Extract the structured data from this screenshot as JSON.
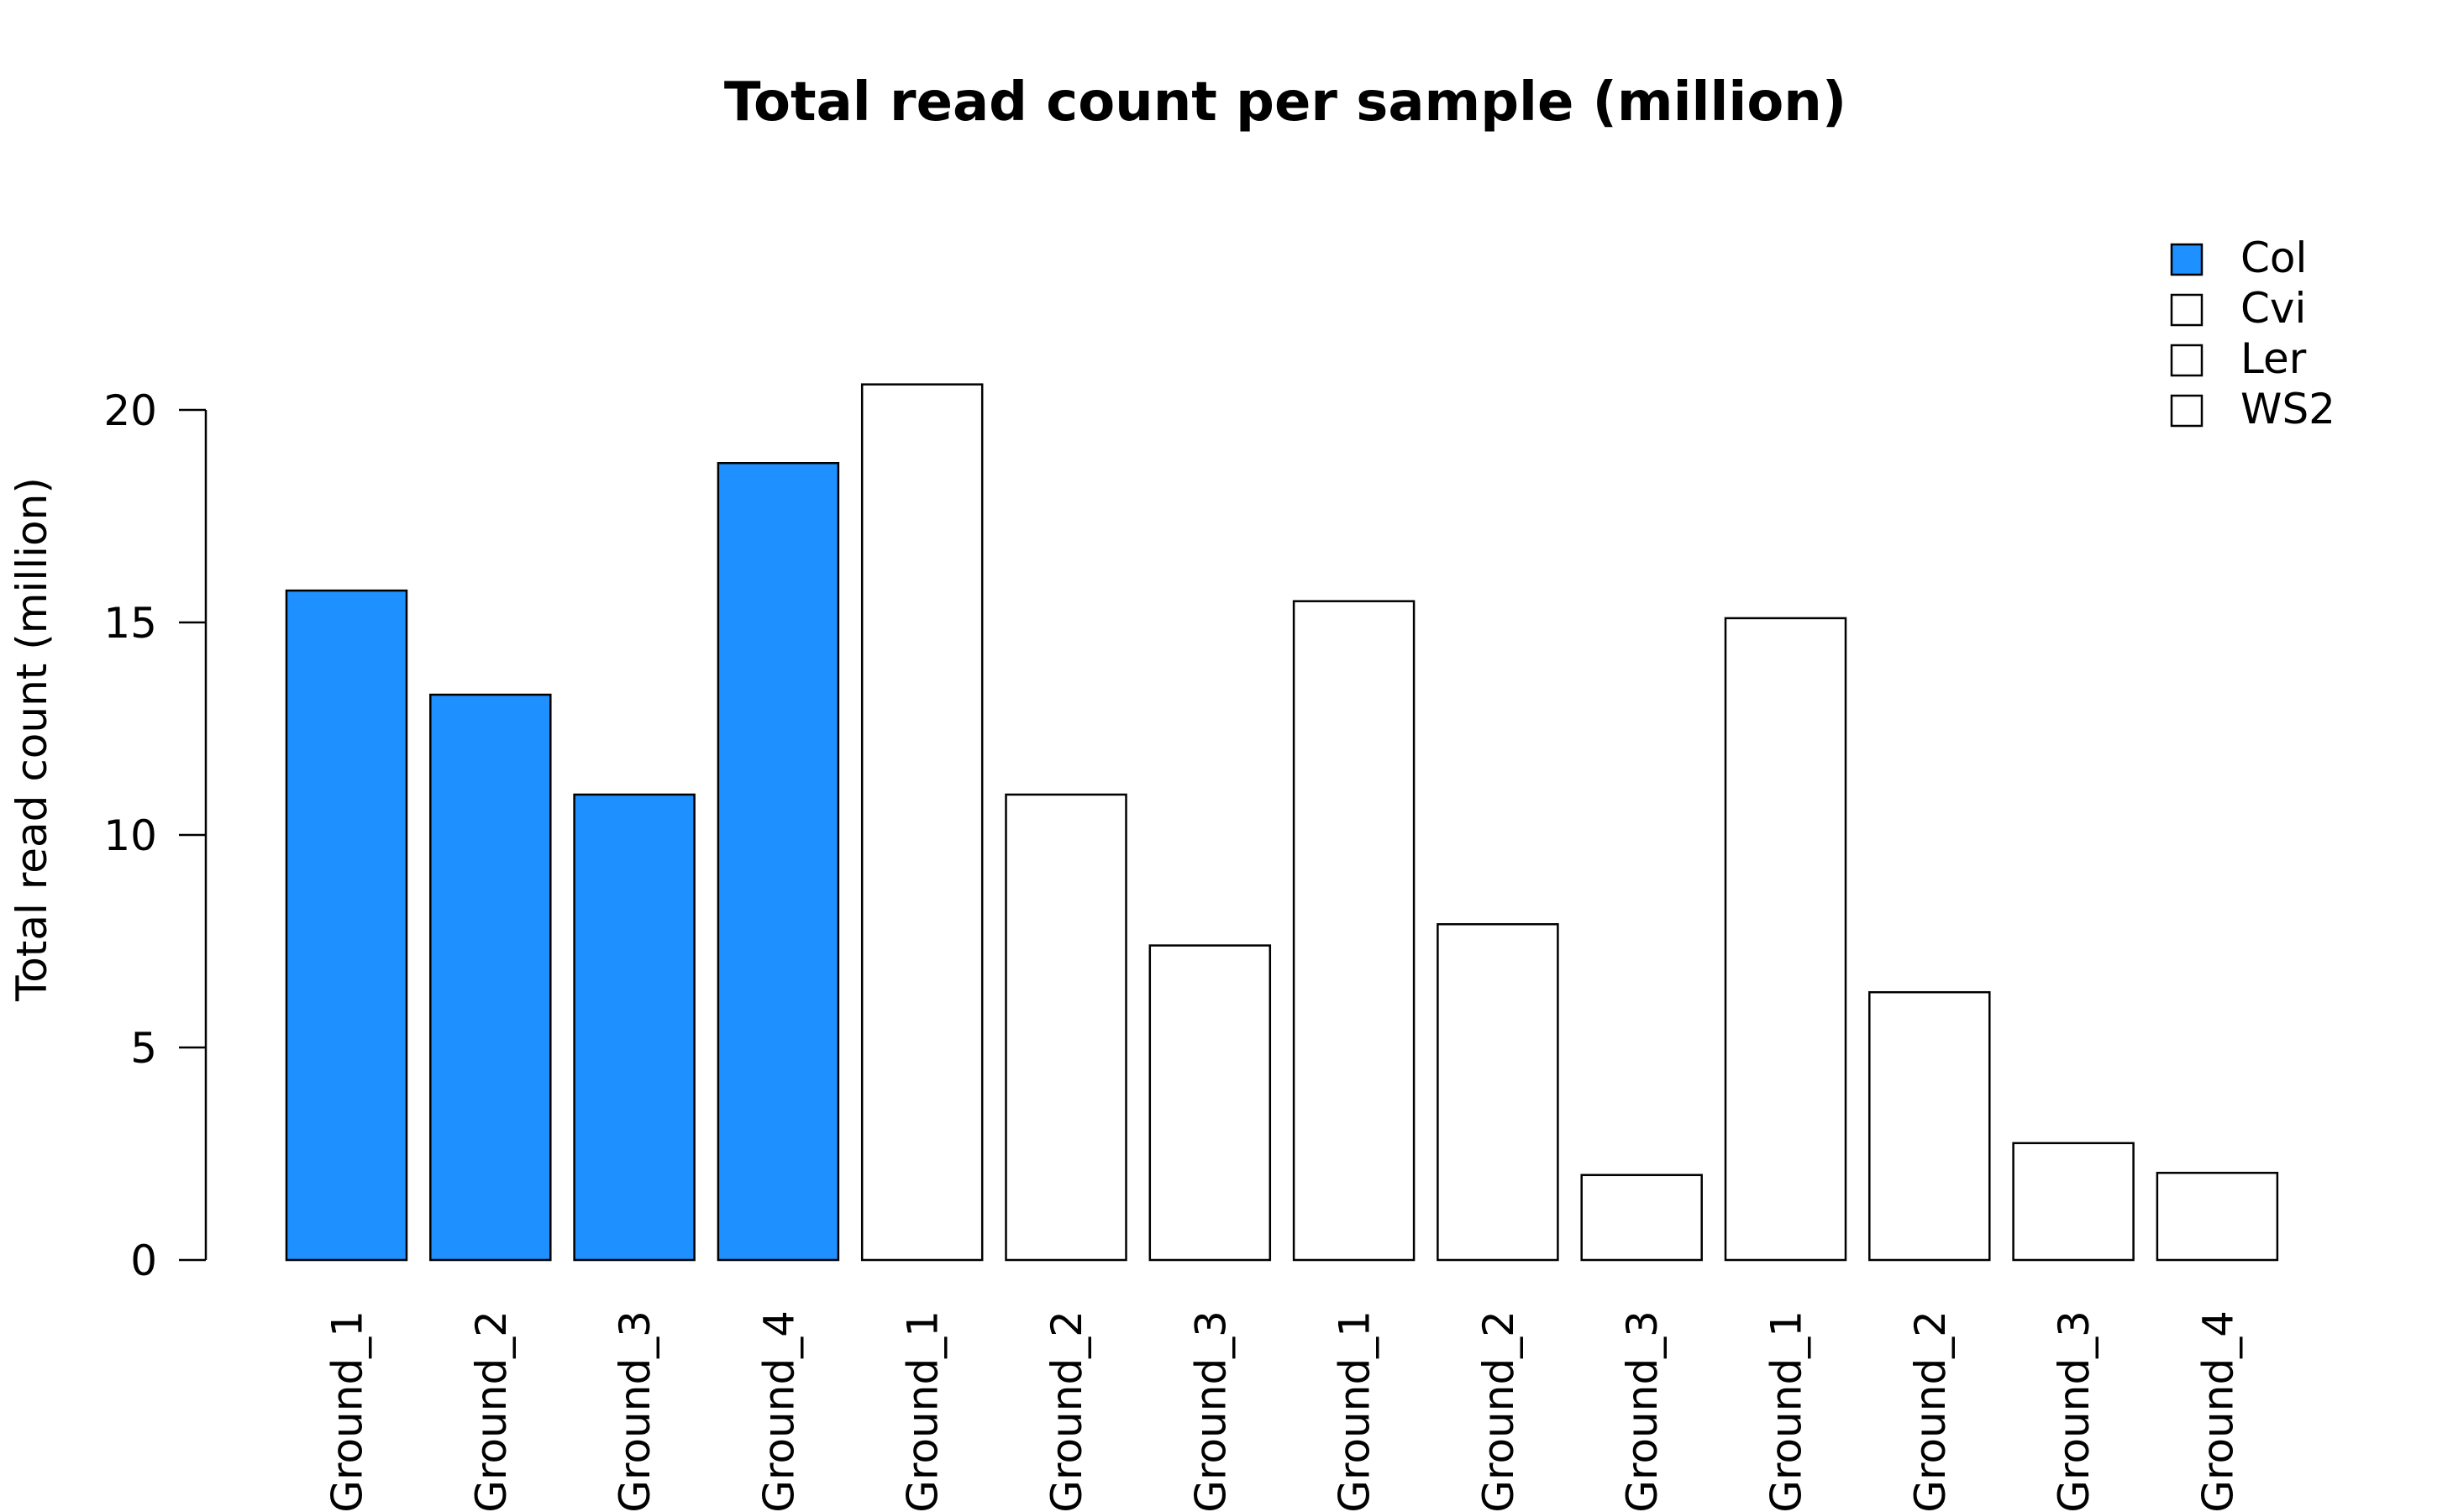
{
  "chart_data": {
    "type": "bar",
    "title": "Total read count per sample (million)",
    "xlabel": "",
    "ylabel": "Total read count (million)",
    "ylim": [
      0,
      20
    ],
    "yticks": [
      0,
      5,
      10,
      15,
      20
    ],
    "grid": false,
    "legend_position": "top-right",
    "categories": [
      "Ground_1",
      "Ground_2",
      "Ground_3",
      "Ground_4",
      "Ground_1",
      "Ground_2",
      "Ground_3",
      "Ground_1",
      "Ground_2",
      "Ground_3",
      "Ground_1",
      "Ground_2",
      "Ground_3",
      "Ground_4"
    ],
    "values": [
      15.75,
      13.3,
      10.95,
      18.75,
      20.6,
      10.95,
      7.4,
      15.5,
      7.9,
      2.0,
      15.1,
      6.3,
      2.75,
      2.05
    ],
    "bar_colors": [
      "#1E90FF",
      "#1E90FF",
      "#1E90FF",
      "#1E90FF",
      "#FFFFFF",
      "#FFFFFF",
      "#FFFFFF",
      "#FFFFFF",
      "#FFFFFF",
      "#FFFFFF",
      "#FFFFFF",
      "#FFFFFF",
      "#FFFFFF",
      "#FFFFFF"
    ],
    "legend": [
      {
        "label": "Col",
        "color": "#1E90FF"
      },
      {
        "label": "Cvi",
        "color": "#FFFFFF"
      },
      {
        "label": "Ler",
        "color": "#FFFFFF"
      },
      {
        "label": "WS2",
        "color": "#FFFFFF"
      }
    ]
  }
}
